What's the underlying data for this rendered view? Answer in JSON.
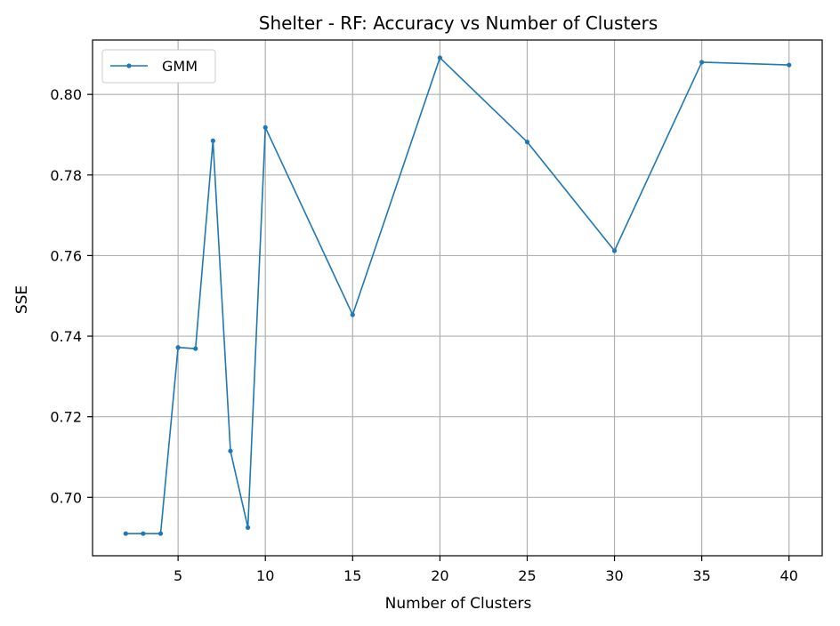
{
  "chart_data": {
    "type": "line",
    "title": "Shelter - RF: Accuracy vs Number of Clusters",
    "xlabel": "Number of Clusters",
    "ylabel": "SSE",
    "xlim": [
      0.1,
      41.9
    ],
    "ylim": [
      0.6855,
      0.8135
    ],
    "xticks": [
      5,
      10,
      15,
      20,
      25,
      30,
      35,
      40
    ],
    "yticks": [
      0.7,
      0.72,
      0.74,
      0.76,
      0.78,
      0.8
    ],
    "ytick_labels": [
      "0.70",
      "0.72",
      "0.74",
      "0.76",
      "0.78",
      "0.80"
    ],
    "grid": true,
    "legend": {
      "placement": "top-left",
      "entries": [
        "GMM"
      ]
    },
    "series": [
      {
        "name": "GMM",
        "color": "#1f77b4",
        "marker": "circle",
        "x": [
          2,
          3,
          4,
          5,
          6,
          7,
          8,
          9,
          10,
          15,
          20,
          25,
          30,
          35,
          40
        ],
        "y": [
          0.691,
          0.691,
          0.691,
          0.7372,
          0.7369,
          0.7885,
          0.7115,
          0.6925,
          0.7918,
          0.7453,
          0.8091,
          0.7882,
          0.7612,
          0.808,
          0.8073
        ]
      }
    ]
  }
}
